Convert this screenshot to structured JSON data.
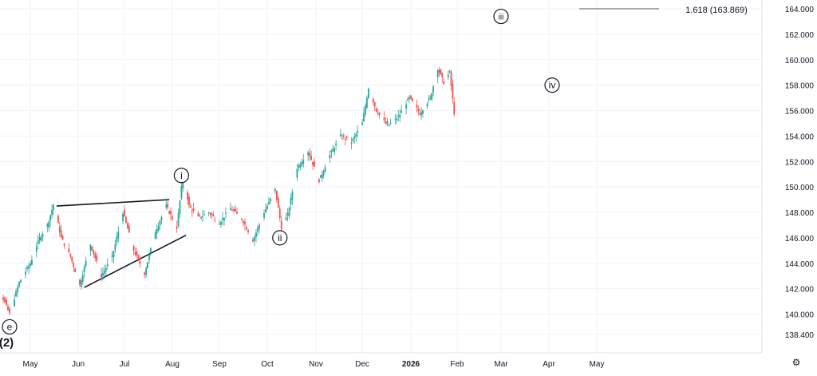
{
  "chart_data": {
    "type": "line",
    "title": "",
    "xlabel": "",
    "ylabel": "",
    "ylim": [
      137,
      165
    ],
    "y_ticks": [
      "138.400",
      "140.000",
      "142.000",
      "144.000",
      "146.000",
      "148.000",
      "150.000",
      "152.000",
      "154.000",
      "156.000",
      "158.000",
      "160.000",
      "162.000",
      "164.000"
    ],
    "x_ticks": [
      "May",
      "Jun",
      "Jul",
      "Aug",
      "Sep",
      "Oct",
      "Nov",
      "Dec",
      "2026",
      "Feb",
      "Mar",
      "Apr",
      "May"
    ],
    "grid": true,
    "series": [
      {
        "values": [
          {
            "x": "2025-04-01",
            "y": 143.5
          },
          {
            "x": "2025-04-08",
            "y": 142.8
          },
          {
            "x": "2025-04-14",
            "y": 141.2
          },
          {
            "x": "2025-04-18",
            "y": 140.0
          },
          {
            "x": "2025-04-24",
            "y": 142.5
          },
          {
            "x": "2025-05-01",
            "y": 144.0
          },
          {
            "x": "2025-05-07",
            "y": 146.0
          },
          {
            "x": "2025-05-12",
            "y": 147.0
          },
          {
            "x": "2025-05-16",
            "y": 148.6
          },
          {
            "x": "2025-05-21",
            "y": 146.0
          },
          {
            "x": "2025-05-27",
            "y": 144.5
          },
          {
            "x": "2025-06-02",
            "y": 142.3
          },
          {
            "x": "2025-06-09",
            "y": 145.5
          },
          {
            "x": "2025-06-16",
            "y": 143.0
          },
          {
            "x": "2025-06-23",
            "y": 144.5
          },
          {
            "x": "2025-06-30",
            "y": 148.0
          },
          {
            "x": "2025-07-07",
            "y": 145.0
          },
          {
            "x": "2025-07-14",
            "y": 143.2
          },
          {
            "x": "2025-07-21",
            "y": 146.5
          },
          {
            "x": "2025-07-28",
            "y": 148.5
          },
          {
            "x": "2025-08-04",
            "y": 146.8
          },
          {
            "x": "2025-08-08",
            "y": 151.0
          },
          {
            "x": "2025-08-12",
            "y": 148.5
          },
          {
            "x": "2025-08-18",
            "y": 147.6
          },
          {
            "x": "2025-08-25",
            "y": 148.0
          },
          {
            "x": "2025-09-01",
            "y": 147.2
          },
          {
            "x": "2025-09-08",
            "y": 148.3
          },
          {
            "x": "2025-09-15",
            "y": 147.5
          },
          {
            "x": "2025-09-22",
            "y": 145.8
          },
          {
            "x": "2025-09-29",
            "y": 148.0
          },
          {
            "x": "2025-10-06",
            "y": 149.8
          },
          {
            "x": "2025-10-10",
            "y": 146.8
          },
          {
            "x": "2025-10-14",
            "y": 147.8
          },
          {
            "x": "2025-10-20",
            "y": 151.5
          },
          {
            "x": "2025-10-27",
            "y": 152.8
          },
          {
            "x": "2025-11-03",
            "y": 150.5
          },
          {
            "x": "2025-11-10",
            "y": 152.5
          },
          {
            "x": "2025-11-17",
            "y": 154.0
          },
          {
            "x": "2025-11-24",
            "y": 153.5
          },
          {
            "x": "2025-12-01",
            "y": 155.0
          },
          {
            "x": "2025-12-05",
            "y": 157.8
          },
          {
            "x": "2025-12-10",
            "y": 156.0
          },
          {
            "x": "2025-12-17",
            "y": 154.8
          },
          {
            "x": "2025-12-24",
            "y": 155.5
          },
          {
            "x": "2025-12-31",
            "y": 157.0
          },
          {
            "x": "2026-01-07",
            "y": 155.8
          },
          {
            "x": "2026-01-14",
            "y": 157.0
          },
          {
            "x": "2026-01-19",
            "y": 159.3
          },
          {
            "x": "2026-01-23",
            "y": 158.2
          },
          {
            "x": "2026-01-27",
            "y": 159.0
          },
          {
            "x": "2026-01-30",
            "y": 155.8
          }
        ]
      }
    ],
    "annotations": [
      {
        "label": "i",
        "x": "2025-08-07",
        "y": 150.9
      },
      {
        "label": "ii",
        "x": "2025-10-09",
        "y": 146.0
      },
      {
        "label": "iii",
        "x": "2026-03-01",
        "y": 163.4
      },
      {
        "label": "iv",
        "x": "2026-04-03",
        "y": 158.0
      },
      {
        "label": "e",
        "x": "2025-04-18",
        "y": 139.0
      },
      {
        "label": "(2)",
        "x": "2025-04-18",
        "y": 137.6
      }
    ],
    "trendlines": [
      {
        "from": {
          "x": "2025-05-18",
          "y": 148.5
        },
        "to": {
          "x": "2025-07-30",
          "y": 149.0
        }
      },
      {
        "from": {
          "x": "2025-06-05",
          "y": 142.1
        },
        "to": {
          "x": "2025-08-10",
          "y": 146.2
        }
      },
      {
        "from": {
          "x": "2026-04-20",
          "y": 164.0
        },
        "to": {
          "x": "2026-06-10",
          "y": 164.0
        }
      }
    ],
    "level_label": "1.618 (163.869)"
  },
  "ui": {
    "settings_icon": "gear-icon",
    "colors": {
      "up": "#26a69a",
      "down": "#ef5350",
      "grid": "#f0f3fa",
      "text": "#131722",
      "label_bg": "#ffffff"
    }
  }
}
